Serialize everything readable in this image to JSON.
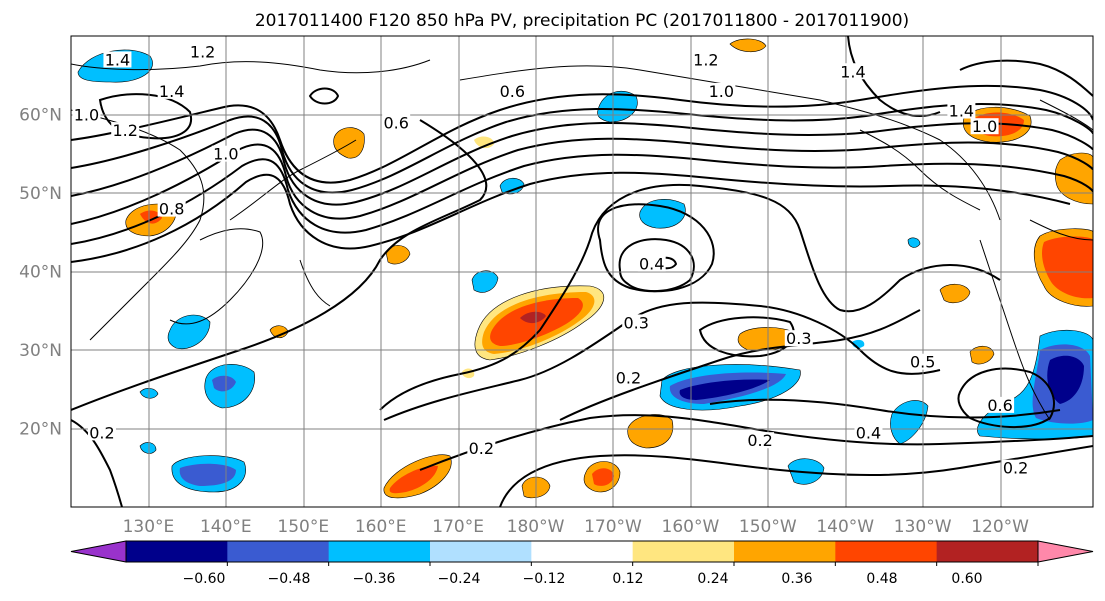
{
  "chart_data": {
    "type": "map-contour",
    "title": "2017011400 F120 850 hPa PV, precipitation PC (2017011800 - 2017011900)",
    "lon_range": [
      120,
      252
    ],
    "lat_range": [
      10,
      70
    ],
    "lon_ticks": [
      {
        "value": 130,
        "label": "130°E"
      },
      {
        "value": 140,
        "label": "140°E"
      },
      {
        "value": 150,
        "label": "150°E"
      },
      {
        "value": 160,
        "label": "160°E"
      },
      {
        "value": 170,
        "label": "170°E"
      },
      {
        "value": 180,
        "label": "180°W"
      },
      {
        "value": 190,
        "label": "170°W"
      },
      {
        "value": 200,
        "label": "160°W"
      },
      {
        "value": 210,
        "label": "150°W"
      },
      {
        "value": 220,
        "label": "140°W"
      },
      {
        "value": 230,
        "label": "130°W"
      },
      {
        "value": 240,
        "label": "120°W"
      }
    ],
    "lat_ticks": [
      {
        "value": 20,
        "label": "20°N"
      },
      {
        "value": 30,
        "label": "30°N"
      },
      {
        "value": 40,
        "label": "40°N"
      },
      {
        "value": 50,
        "label": "50°N"
      },
      {
        "value": 60,
        "label": "60°N"
      }
    ],
    "grid": true,
    "colorbar": {
      "levels": [
        -0.6,
        -0.48,
        -0.36,
        -0.24,
        -0.12,
        0.12,
        0.24,
        0.36,
        0.48,
        0.6
      ],
      "tick_labels": [
        "−0.60",
        "−0.48",
        "−0.36",
        "−0.24",
        "−0.12",
        "0.12",
        "0.24",
        "0.36",
        "0.48",
        "0.60"
      ],
      "colors": [
        "#9932cc",
        "#00008b",
        "#3a5bd1",
        "#00bfff",
        "#b0e0ff",
        "#ffffff",
        "#ffe680",
        "#ffa500",
        "#ff4500",
        "#b22222",
        "#ff88aa"
      ],
      "extend": "both"
    },
    "contour_labels": [
      {
        "text": "1.4",
        "lon": 126,
        "lat": 66.5
      },
      {
        "text": "1.2",
        "lon": 137,
        "lat": 67.5
      },
      {
        "text": "1.4",
        "lon": 133,
        "lat": 62.5
      },
      {
        "text": "1.0",
        "lon": 122,
        "lat": 59.5
      },
      {
        "text": "1.2",
        "lon": 127,
        "lat": 57.5
      },
      {
        "text": "1.0",
        "lon": 140,
        "lat": 54.5
      },
      {
        "text": "0.8",
        "lon": 133,
        "lat": 47.5
      },
      {
        "text": "0.6",
        "lon": 162,
        "lat": 58.5
      },
      {
        "text": "0.6",
        "lon": 177,
        "lat": 62.5
      },
      {
        "text": "1.2",
        "lon": 202,
        "lat": 66.5
      },
      {
        "text": "1.0",
        "lon": 204,
        "lat": 62.5
      },
      {
        "text": "1.4",
        "lon": 221,
        "lat": 65
      },
      {
        "text": "1.4",
        "lon": 235,
        "lat": 60
      },
      {
        "text": "1.0",
        "lon": 238,
        "lat": 58
      },
      {
        "text": "0.4",
        "lon": 195,
        "lat": 40.5
      },
      {
        "text": "0.3",
        "lon": 193,
        "lat": 33
      },
      {
        "text": "0.3",
        "lon": 214,
        "lat": 31
      },
      {
        "text": "0.2",
        "lon": 192,
        "lat": 26
      },
      {
        "text": "0.5",
        "lon": 230,
        "lat": 28
      },
      {
        "text": "0.6",
        "lon": 240,
        "lat": 22.5
      },
      {
        "text": "0.4",
        "lon": 223,
        "lat": 19
      },
      {
        "text": "0.2",
        "lon": 209,
        "lat": 18
      },
      {
        "text": "0.2",
        "lon": 173,
        "lat": 17
      },
      {
        "text": "0.2",
        "lon": 242,
        "lat": 14.5
      },
      {
        "text": "0.2",
        "lon": 124,
        "lat": 19
      }
    ]
  }
}
